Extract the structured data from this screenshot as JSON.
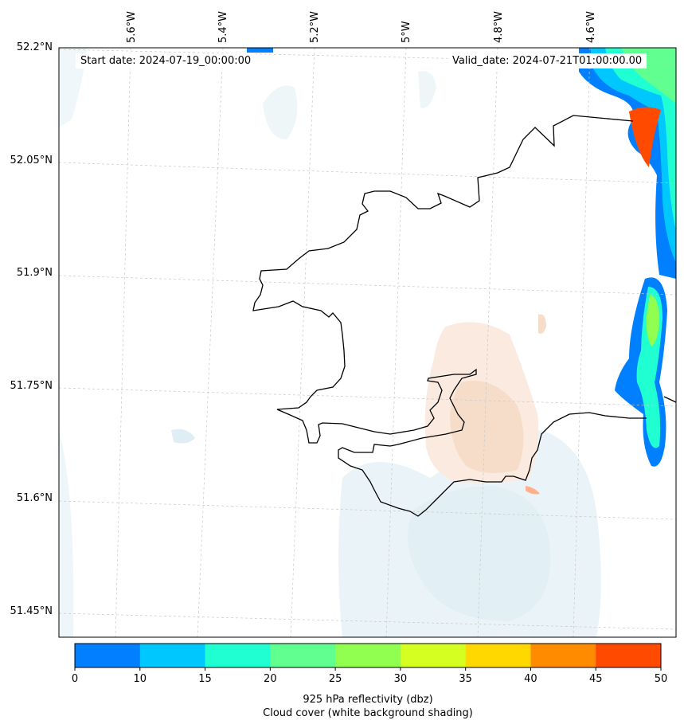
{
  "map": {
    "start_date": "Start date: 2024-07-19_00:00:00",
    "valid_date": "Valid_date: 2024-07-21T01:00:00.00",
    "lon_labels": [
      "5.6°W",
      "5.4°W",
      "5.2°W",
      "5°W",
      "4.8°W",
      "4.6°W"
    ],
    "lat_labels": [
      "52.2°N",
      "52.05°N",
      "51.9°N",
      "51.75°N",
      "51.6°N",
      "51.45°N"
    ],
    "coastline_color": "#000000",
    "cloud_colors": [
      "#eaf4f8",
      "#f9e6d8"
    ]
  },
  "colorbar": {
    "ticks": [
      "0",
      "10",
      "15",
      "20",
      "25",
      "30",
      "35",
      "40",
      "45",
      "50"
    ],
    "colors": [
      "#0080ff",
      "#00c8ff",
      "#20ffd2",
      "#60ff90",
      "#90ff50",
      "#d4ff20",
      "#ffd800",
      "#ff8c00",
      "#ff4a00"
    ],
    "title_line1": "925 hPa reflectivity (dbz)",
    "title_line2": "Cloud cover (white background shading)"
  }
}
